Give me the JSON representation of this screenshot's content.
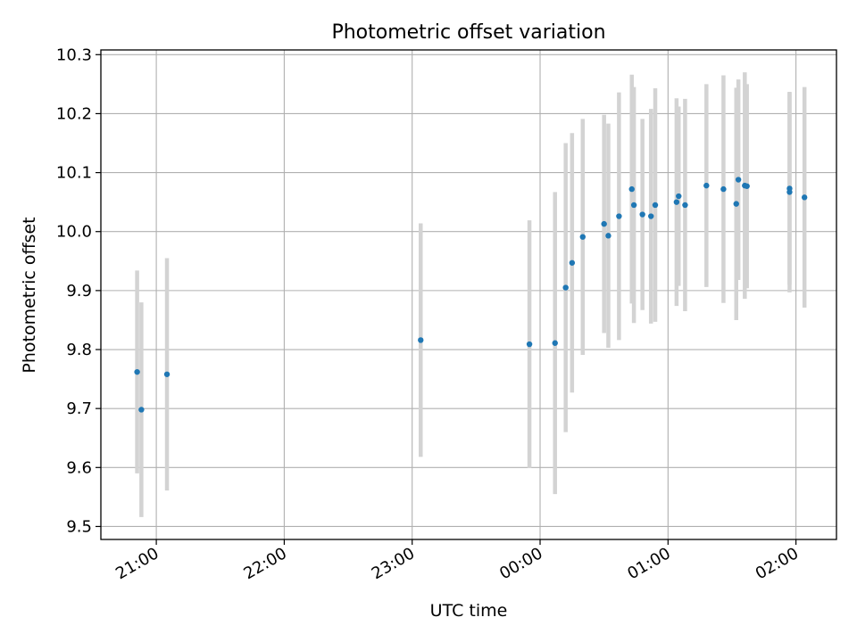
{
  "chart_data": {
    "type": "scatter",
    "title": "Photometric offset variation",
    "xlabel": "UTC time",
    "ylabel": "Photometric offset",
    "x_unit": "UTC time (HH:MM, evening into next day)",
    "xlim": [
      "20:34",
      "02:19"
    ],
    "ylim": [
      9.478,
      10.308
    ],
    "x_ticks": [
      "21:00",
      "22:00",
      "23:00",
      "00:00",
      "01:00",
      "02:00"
    ],
    "y_ticks": [
      "9.5",
      "9.6",
      "9.7",
      "9.8",
      "9.9",
      "10.0",
      "10.1",
      "10.2",
      "10.3"
    ],
    "grid": true,
    "legend": "none",
    "colors": {
      "points": "#1f77b4",
      "errorbars": "#d3d3d3",
      "grid": "#b0b0b0"
    },
    "points": [
      {
        "x": "20:51",
        "y": 9.762,
        "err": 0.172
      },
      {
        "x": "20:53",
        "y": 9.698,
        "err": 0.182
      },
      {
        "x": "21:05",
        "y": 9.758,
        "err": 0.197
      },
      {
        "x": "23:04",
        "y": 9.816,
        "err": 0.198
      },
      {
        "x": "23:55",
        "y": 9.809,
        "err": 0.21
      },
      {
        "x": "00:07",
        "y": 9.811,
        "err": 0.256
      },
      {
        "x": "00:12",
        "y": 9.905,
        "err": 0.245
      },
      {
        "x": "00:15",
        "y": 9.947,
        "err": 0.22
      },
      {
        "x": "00:20",
        "y": 9.991,
        "err": 0.2
      },
      {
        "x": "00:30",
        "y": 10.013,
        "err": 0.185
      },
      {
        "x": "00:32",
        "y": 9.993,
        "err": 0.19
      },
      {
        "x": "00:37",
        "y": 10.026,
        "err": 0.21
      },
      {
        "x": "00:43",
        "y": 10.072,
        "err": 0.194
      },
      {
        "x": "00:44",
        "y": 10.045,
        "err": 0.2
      },
      {
        "x": "00:48",
        "y": 10.029,
        "err": 0.162
      },
      {
        "x": "00:52",
        "y": 10.026,
        "err": 0.182
      },
      {
        "x": "00:54",
        "y": 10.045,
        "err": 0.198
      },
      {
        "x": "01:04",
        "y": 10.05,
        "err": 0.176
      },
      {
        "x": "01:05",
        "y": 10.06,
        "err": 0.152
      },
      {
        "x": "01:08",
        "y": 10.045,
        "err": 0.18
      },
      {
        "x": "01:18",
        "y": 10.078,
        "err": 0.172
      },
      {
        "x": "01:26",
        "y": 10.072,
        "err": 0.193
      },
      {
        "x": "01:32",
        "y": 10.047,
        "err": 0.197
      },
      {
        "x": "01:33",
        "y": 10.088,
        "err": 0.17
      },
      {
        "x": "01:36",
        "y": 10.078,
        "err": 0.192
      },
      {
        "x": "01:37",
        "y": 10.077,
        "err": 0.173
      },
      {
        "x": "01:57",
        "y": 10.067,
        "err": 0.17
      },
      {
        "x": "01:57",
        "y": 10.073,
        "err": 0.163
      },
      {
        "x": "02:04",
        "y": 10.058,
        "err": 0.187
      }
    ]
  }
}
